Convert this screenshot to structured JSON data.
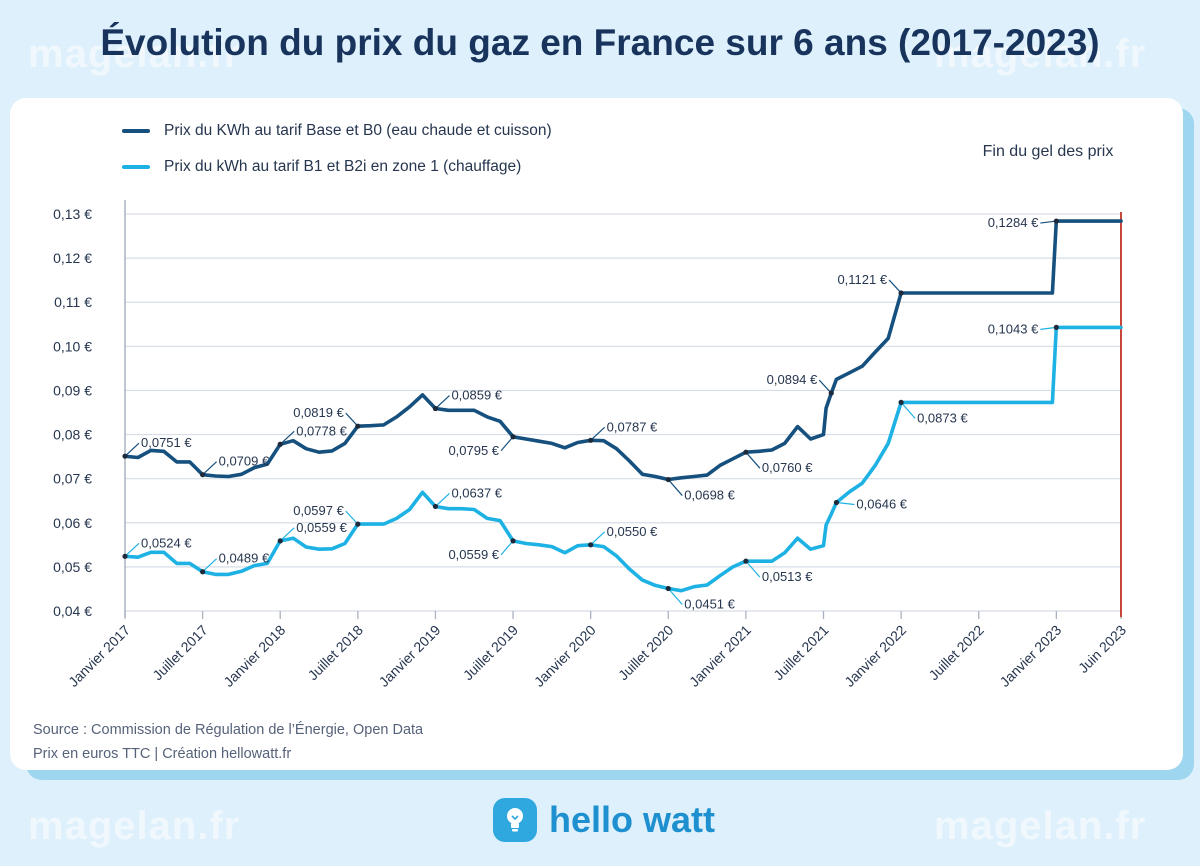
{
  "title": "Évolution du prix du gaz en France sur 6 ans (2017-2023)",
  "watermark": "magelan.fr",
  "freeze_label": "Fin du gel des prix",
  "footer": {
    "source": "Source : Commission de Régulation de l’Énergie, Open Data",
    "note": "Prix en euros TTC | Création hellowatt.fr"
  },
  "brand": {
    "name": "hello watt",
    "icon": "lightbulb-icon"
  },
  "colors": {
    "dark_series": "#16507e",
    "light_series": "#1eb2e4",
    "marker_line": "#c8473b",
    "title": "#18345c"
  },
  "chart_data": {
    "type": "line",
    "title": "Évolution du prix du gaz en France sur 6 ans (2017-2023)",
    "xlabel": "",
    "ylabel": "",
    "ylim": [
      0.04,
      0.13
    ],
    "xlim": [
      0,
      77
    ],
    "grid": true,
    "legend_position": "top-left",
    "y_ticks": [
      0.04,
      0.05,
      0.06,
      0.07,
      0.08,
      0.09,
      0.1,
      0.11,
      0.12,
      0.13
    ],
    "y_tick_labels": [
      "0,04 €",
      "0,05 €",
      "0,06 €",
      "0,07 €",
      "0,08 €",
      "0,09 €",
      "0,10 €",
      "0,11 €",
      "0,12 €",
      "0,13 €"
    ],
    "x_ticks": [
      0,
      6,
      12,
      18,
      24,
      30,
      36,
      42,
      48,
      54,
      60,
      66,
      72,
      77
    ],
    "x_tick_labels": [
      "Janvier 2017",
      "Juillet  2017",
      "Janvier 2018",
      "Juillet  2018",
      "Janvier 2019",
      "Juillet  2019",
      "Janvier 2020",
      "Juillet  2020",
      "Janvier 2021",
      "Juillet  2021",
      "Janvier 2022",
      "Juillet  2022",
      "Janvier 2023",
      "Juin 2023"
    ],
    "vline": {
      "x": 77,
      "label": "Fin du gel des prix"
    },
    "series": [
      {
        "name": "Prix du KWh au tarif Base et B0 (eau chaude et cuisson)",
        "points": [
          [
            0,
            0.0751
          ],
          [
            1,
            0.0748
          ],
          [
            2,
            0.0764
          ],
          [
            3,
            0.0762
          ],
          [
            4,
            0.0738
          ],
          [
            5,
            0.0738
          ],
          [
            6,
            0.0709
          ],
          [
            7,
            0.0706
          ],
          [
            8,
            0.0705
          ],
          [
            9,
            0.071
          ],
          [
            10,
            0.0725
          ],
          [
            11,
            0.0733
          ],
          [
            12,
            0.0778
          ],
          [
            13,
            0.0786
          ],
          [
            14,
            0.0768
          ],
          [
            15,
            0.076
          ],
          [
            16,
            0.0763
          ],
          [
            17,
            0.078
          ],
          [
            18,
            0.0819
          ],
          [
            19,
            0.082
          ],
          [
            20,
            0.0822
          ],
          [
            21,
            0.084
          ],
          [
            22,
            0.0863
          ],
          [
            23,
            0.089
          ],
          [
            24,
            0.0859
          ],
          [
            25,
            0.0855
          ],
          [
            26,
            0.0855
          ],
          [
            27,
            0.0855
          ],
          [
            28,
            0.084
          ],
          [
            29,
            0.083
          ],
          [
            30,
            0.0795
          ],
          [
            31,
            0.079
          ],
          [
            32,
            0.0785
          ],
          [
            33,
            0.078
          ],
          [
            34,
            0.077
          ],
          [
            35,
            0.0782
          ],
          [
            36,
            0.0787
          ],
          [
            37,
            0.0786
          ],
          [
            38,
            0.0768
          ],
          [
            39,
            0.074
          ],
          [
            40,
            0.071
          ],
          [
            41,
            0.0705
          ],
          [
            42,
            0.0698
          ],
          [
            43,
            0.0702
          ],
          [
            44,
            0.0705
          ],
          [
            45,
            0.0708
          ],
          [
            46,
            0.073
          ],
          [
            47,
            0.0745
          ],
          [
            48,
            0.076
          ],
          [
            49,
            0.0762
          ],
          [
            50,
            0.0765
          ],
          [
            51,
            0.078
          ],
          [
            52,
            0.0818
          ],
          [
            53,
            0.079
          ],
          [
            54,
            0.08
          ],
          [
            54.2,
            0.086
          ],
          [
            54.6,
            0.0894
          ],
          [
            55,
            0.0925
          ],
          [
            56,
            0.094
          ],
          [
            57,
            0.0955
          ],
          [
            58,
            0.0987
          ],
          [
            59,
            0.1018
          ],
          [
            60,
            0.1121
          ],
          [
            71.7,
            0.1121
          ],
          [
            72,
            0.1284
          ],
          [
            77,
            0.1284
          ]
        ]
      },
      {
        "name": "Prix du kWh au tarif B1 et B2i en zone 1 (chauffage)",
        "points": [
          [
            0,
            0.0524
          ],
          [
            1,
            0.0522
          ],
          [
            2,
            0.0533
          ],
          [
            3,
            0.0533
          ],
          [
            4,
            0.0508
          ],
          [
            5,
            0.0508
          ],
          [
            6,
            0.0489
          ],
          [
            7,
            0.0483
          ],
          [
            8,
            0.0483
          ],
          [
            9,
            0.049
          ],
          [
            10,
            0.0503
          ],
          [
            11,
            0.0508
          ],
          [
            12,
            0.0559
          ],
          [
            13,
            0.0565
          ],
          [
            14,
            0.0545
          ],
          [
            15,
            0.054
          ],
          [
            16,
            0.0541
          ],
          [
            17,
            0.0553
          ],
          [
            18,
            0.0597
          ],
          [
            19,
            0.0597
          ],
          [
            20,
            0.0597
          ],
          [
            21,
            0.061
          ],
          [
            22,
            0.063
          ],
          [
            23,
            0.0669
          ],
          [
            24,
            0.0637
          ],
          [
            25,
            0.0632
          ],
          [
            26,
            0.0632
          ],
          [
            27,
            0.063
          ],
          [
            28,
            0.061
          ],
          [
            29,
            0.0605
          ],
          [
            30,
            0.0559
          ],
          [
            31,
            0.0553
          ],
          [
            32,
            0.055
          ],
          [
            33,
            0.0546
          ],
          [
            34,
            0.0532
          ],
          [
            35,
            0.0548
          ],
          [
            36,
            0.055
          ],
          [
            37,
            0.0546
          ],
          [
            38,
            0.0525
          ],
          [
            39,
            0.0495
          ],
          [
            40,
            0.047
          ],
          [
            41,
            0.0458
          ],
          [
            42,
            0.0451
          ],
          [
            43,
            0.0446
          ],
          [
            44,
            0.0455
          ],
          [
            45,
            0.0459
          ],
          [
            46,
            0.048
          ],
          [
            47,
            0.05
          ],
          [
            48,
            0.0513
          ],
          [
            49,
            0.0513
          ],
          [
            50,
            0.0513
          ],
          [
            51,
            0.0532
          ],
          [
            52,
            0.0565
          ],
          [
            53,
            0.054
          ],
          [
            54,
            0.0548
          ],
          [
            54.2,
            0.0595
          ],
          [
            54.6,
            0.062
          ],
          [
            55,
            0.0646
          ],
          [
            56,
            0.067
          ],
          [
            57,
            0.069
          ],
          [
            58,
            0.073
          ],
          [
            59,
            0.078
          ],
          [
            60,
            0.0873
          ],
          [
            71.7,
            0.0873
          ],
          [
            72,
            0.1043
          ],
          [
            77,
            0.1043
          ]
        ]
      }
    ],
    "annotations": [
      {
        "series": 0,
        "x": 0,
        "y": 0.0751,
        "label": "0,0751 €",
        "pos": "above-right"
      },
      {
        "series": 0,
        "x": 6,
        "y": 0.0709,
        "label": "0,0709 €",
        "pos": "above-right"
      },
      {
        "series": 0,
        "x": 12,
        "y": 0.0778,
        "label": "0,0778 €",
        "pos": "above-right"
      },
      {
        "series": 0,
        "x": 18,
        "y": 0.0819,
        "label": "0,0819 €",
        "pos": "above-left"
      },
      {
        "series": 0,
        "x": 24,
        "y": 0.0859,
        "label": "0,0859 €",
        "pos": "above-right"
      },
      {
        "series": 0,
        "x": 30,
        "y": 0.0795,
        "label": "0,0795 €",
        "pos": "below-left"
      },
      {
        "series": 0,
        "x": 36,
        "y": 0.0787,
        "label": "0,0787 €",
        "pos": "above-right"
      },
      {
        "series": 0,
        "x": 42,
        "y": 0.0698,
        "label": "0,0698 €",
        "pos": "below-right"
      },
      {
        "series": 0,
        "x": 48,
        "y": 0.076,
        "label": "0,0760 €",
        "pos": "below-right"
      },
      {
        "series": 0,
        "x": 54.6,
        "y": 0.0894,
        "label": "0,0894 €",
        "pos": "above-left"
      },
      {
        "series": 0,
        "x": 60,
        "y": 0.1121,
        "label": "0,1121 €",
        "pos": "above-left"
      },
      {
        "series": 0,
        "x": 72,
        "y": 0.1284,
        "label": "0,1284 €",
        "pos": "left"
      },
      {
        "series": 1,
        "x": 0,
        "y": 0.0524,
        "label": "0,0524 €",
        "pos": "above-right"
      },
      {
        "series": 1,
        "x": 6,
        "y": 0.0489,
        "label": "0,0489 €",
        "pos": "above-right"
      },
      {
        "series": 1,
        "x": 12,
        "y": 0.0559,
        "label": "0,0559 €",
        "pos": "above-right"
      },
      {
        "series": 1,
        "x": 18,
        "y": 0.0597,
        "label": "0,0597 €",
        "pos": "above-left"
      },
      {
        "series": 1,
        "x": 24,
        "y": 0.0637,
        "label": "0,0637 €",
        "pos": "above-right"
      },
      {
        "series": 1,
        "x": 30,
        "y": 0.0559,
        "label": "0,0559 €",
        "pos": "below-left"
      },
      {
        "series": 1,
        "x": 36,
        "y": 0.055,
        "label": "0,0550 €",
        "pos": "above-right"
      },
      {
        "series": 1,
        "x": 42,
        "y": 0.0451,
        "label": "0,0451 €",
        "pos": "below-right"
      },
      {
        "series": 1,
        "x": 48,
        "y": 0.0513,
        "label": "0,0513 €",
        "pos": "below-right"
      },
      {
        "series": 1,
        "x": 55,
        "y": 0.0646,
        "label": "0,0646 €",
        "pos": "right"
      },
      {
        "series": 1,
        "x": 60,
        "y": 0.0873,
        "label": "0,0873 €",
        "pos": "below-right"
      },
      {
        "series": 1,
        "x": 72,
        "y": 0.1043,
        "label": "0,1043 €",
        "pos": "left"
      }
    ]
  }
}
